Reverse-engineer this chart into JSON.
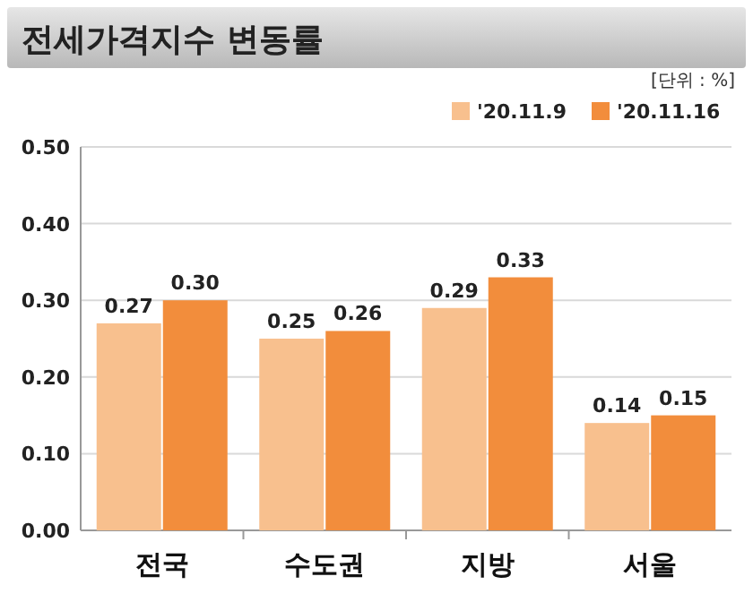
{
  "chart_data": {
    "type": "bar",
    "title": "전세가격지수 변동률",
    "annotations": [
      "[단위 : %]"
    ],
    "categories": [
      "전국",
      "수도권",
      "지방",
      "서울"
    ],
    "series": [
      {
        "name": "'20.11.9",
        "color": "#f8c08e",
        "values": [
          0.27,
          0.25,
          0.29,
          0.14
        ],
        "value_labels": [
          "0.27",
          "0.25",
          "0.29",
          "0.14"
        ]
      },
      {
        "name": "'20.11.16",
        "color": "#f28d3c",
        "values": [
          0.3,
          0.26,
          0.33,
          0.15
        ],
        "value_labels": [
          "0.30",
          "0.26",
          "0.33",
          "0.15"
        ]
      }
    ],
    "ylim": [
      0,
      0.5
    ],
    "yticks": [
      "0.00",
      "0.10",
      "0.20",
      "0.30",
      "0.40",
      "0.50"
    ],
    "grid": "y",
    "legend": "top right"
  }
}
